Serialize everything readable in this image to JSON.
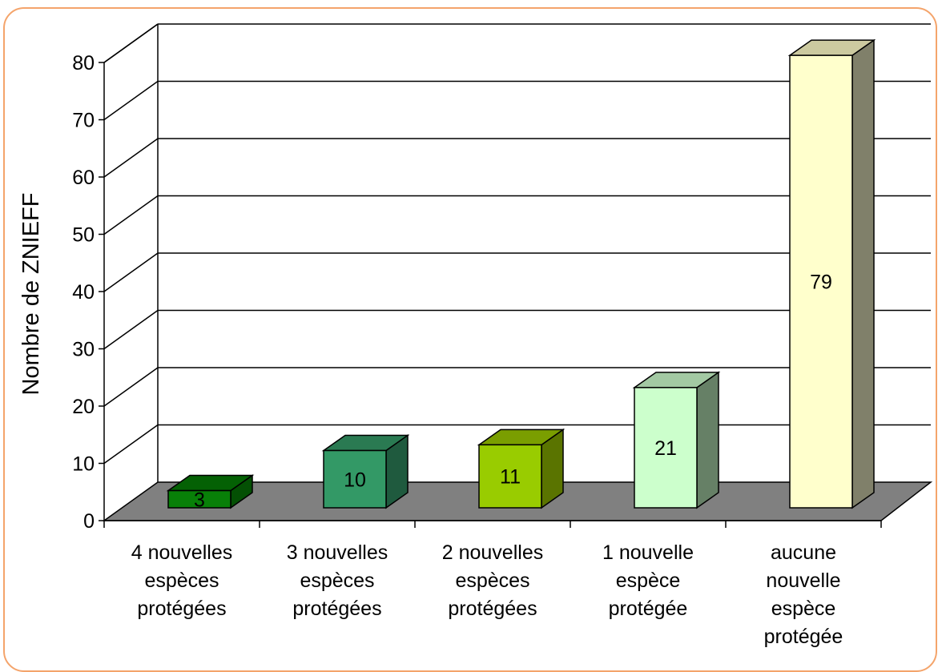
{
  "chart_data": {
    "type": "bar",
    "categories": [
      [
        "4 nouvelles",
        "espèces",
        "protégées"
      ],
      [
        "3 nouvelles",
        "espèces",
        "protégées"
      ],
      [
        "2 nouvelles",
        "espèces",
        "protégées"
      ],
      [
        "1 nouvelle",
        "espèce",
        "protégée"
      ],
      [
        "aucune",
        "nouvelle",
        "espèce",
        "protégée"
      ]
    ],
    "values": [
      3,
      10,
      11,
      21,
      79
    ],
    "data_labels": [
      "3",
      "10",
      "11",
      "21",
      "79"
    ],
    "ylabel": "Nombre de ZNIEFF",
    "ylim": [
      0,
      80
    ],
    "yticks": [
      "0",
      "10",
      "20",
      "30",
      "40",
      "50",
      "60",
      "70",
      "80"
    ],
    "grid": true,
    "legend": "none",
    "style": "3d-column",
    "colors": {
      "bars": [
        {
          "front": "#088008",
          "top": "#046104",
          "side": "#045004"
        },
        {
          "front": "#339966",
          "top": "#2a7a52",
          "side": "#1f5a3e"
        },
        {
          "front": "#99cc00",
          "top": "#7a9e00",
          "side": "#5a7400"
        },
        {
          "front": "#ccffcc",
          "top": "#a3c9a3",
          "side": "#668066"
        },
        {
          "front": "#ffffcc",
          "top": "#cccaa0",
          "side": "#80806a"
        }
      ],
      "floor": "#808080",
      "frame": "#f4a46b"
    }
  }
}
